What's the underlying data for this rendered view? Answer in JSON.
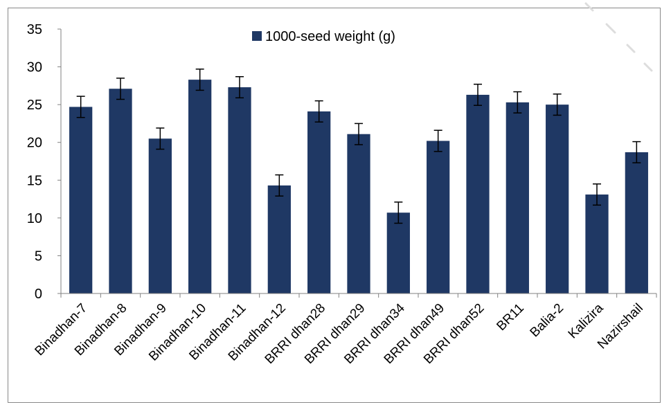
{
  "chart_data": {
    "type": "bar",
    "title": "",
    "xlabel": "",
    "ylabel": "",
    "ylim": [
      0,
      35
    ],
    "yticks": [
      0,
      5,
      10,
      15,
      20,
      25,
      30,
      35
    ],
    "grid": false,
    "legend_position": "top-center",
    "categories": [
      "Binadhan-7",
      "Binadhan-8",
      "Binadhan-9",
      "Binadhan-10",
      "Binadhan-11",
      "Binadhan-12",
      "BRRI dhan28",
      "BRRI dhan29",
      "BRRI dhan34",
      "BRRI dhan49",
      "BRRI dhan52",
      "BR11",
      "Balia-2",
      "Kalizira",
      "Nazirshail"
    ],
    "series": [
      {
        "name": "1000-seed weight (g)",
        "color": "#1f3864",
        "values": [
          24.7,
          27.1,
          20.5,
          28.3,
          27.3,
          14.3,
          24.1,
          21.1,
          10.7,
          20.2,
          26.3,
          25.3,
          25.0,
          13.1,
          18.7
        ],
        "errors": [
          1.4,
          1.4,
          1.4,
          1.4,
          1.4,
          1.4,
          1.4,
          1.4,
          1.4,
          1.4,
          1.4,
          1.4,
          1.4,
          1.4,
          1.4
        ]
      }
    ]
  }
}
